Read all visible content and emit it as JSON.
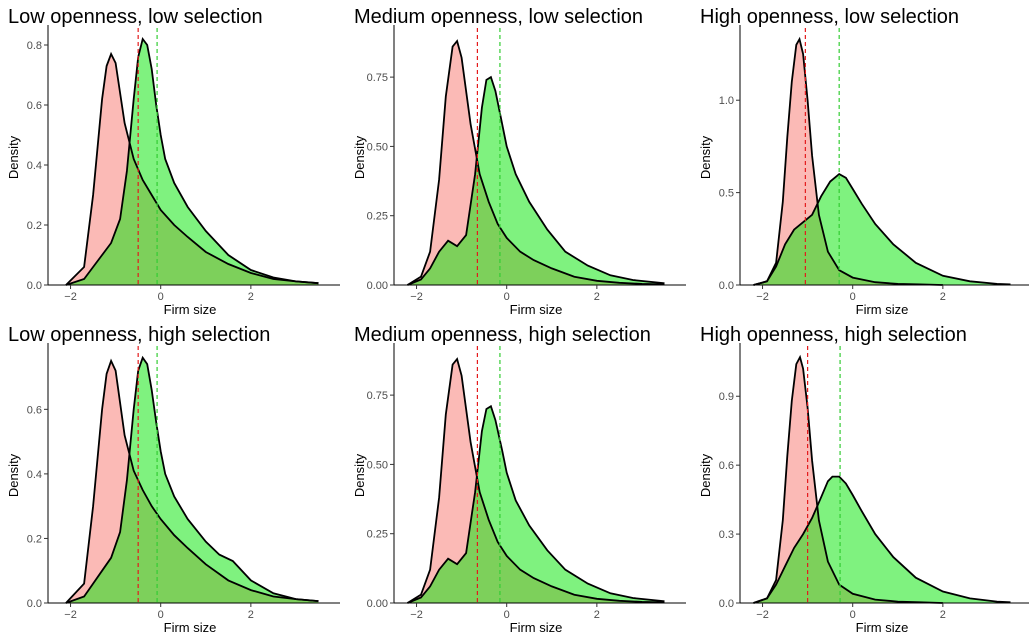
{
  "chart_data": [
    {
      "type": "area",
      "title": "Low openness, low selection",
      "xlabel": "Firm size",
      "ylabel": "Density",
      "xlim": [
        -2.5,
        3.8
      ],
      "ylim": [
        0,
        0.85
      ],
      "xticks": [
        -2,
        0,
        2
      ],
      "xtick_labels": [
        "−2",
        "0",
        "2"
      ],
      "yticks": [
        0,
        0.2,
        0.4,
        0.6,
        0.8
      ],
      "ytick_labels": [
        "0.0",
        "0.2",
        "0.4",
        "0.6",
        "0.8"
      ],
      "colors": {
        "red": "#f8766d",
        "green": "#00e600"
      },
      "vlines": {
        "red": -0.5,
        "green": -0.08
      },
      "series": [
        {
          "color": "red",
          "x": [
            -2.1,
            -1.7,
            -1.5,
            -1.3,
            -1.2,
            -1.1,
            -1.0,
            -0.9,
            -0.8,
            -0.6,
            -0.4,
            -0.2,
            0.0,
            0.3,
            0.6,
            1.0,
            1.5,
            2.0,
            2.5,
            3.0,
            3.5
          ],
          "y": [
            0.0,
            0.06,
            0.3,
            0.62,
            0.73,
            0.77,
            0.74,
            0.64,
            0.54,
            0.42,
            0.35,
            0.3,
            0.25,
            0.2,
            0.16,
            0.11,
            0.07,
            0.04,
            0.02,
            0.012,
            0.006
          ]
        },
        {
          "color": "green",
          "x": [
            -2.1,
            -1.7,
            -1.5,
            -1.3,
            -1.1,
            -0.9,
            -0.75,
            -0.6,
            -0.5,
            -0.4,
            -0.3,
            -0.2,
            -0.1,
            0.0,
            0.1,
            0.3,
            0.6,
            1.0,
            1.5,
            2.0,
            2.5,
            3.0,
            3.5
          ],
          "y": [
            0.0,
            0.02,
            0.06,
            0.1,
            0.14,
            0.22,
            0.38,
            0.62,
            0.76,
            0.82,
            0.8,
            0.72,
            0.6,
            0.5,
            0.42,
            0.34,
            0.26,
            0.18,
            0.1,
            0.05,
            0.025,
            0.012,
            0.006
          ]
        }
      ]
    },
    {
      "type": "area",
      "title": "Medium openness, low selection",
      "xlabel": "Firm size",
      "ylabel": "Density",
      "xlim": [
        -2.5,
        3.8
      ],
      "ylim": [
        0,
        0.92
      ],
      "xticks": [
        -2,
        0,
        2
      ],
      "xtick_labels": [
        "−2",
        "0",
        "2"
      ],
      "yticks": [
        0,
        0.25,
        0.5,
        0.75
      ],
      "ytick_labels": [
        "0.00",
        "0.25",
        "0.50",
        "0.75"
      ],
      "colors": {
        "red": "#f8766d",
        "green": "#00e600"
      },
      "vlines": {
        "red": -0.65,
        "green": -0.15
      },
      "series": [
        {
          "color": "red",
          "x": [
            -2.2,
            -1.9,
            -1.7,
            -1.5,
            -1.35,
            -1.2,
            -1.1,
            -1.0,
            -0.9,
            -0.8,
            -0.6,
            -0.4,
            -0.2,
            0.0,
            0.3,
            0.6,
            1.0,
            1.5,
            2.0,
            2.5,
            3.0,
            3.5
          ],
          "y": [
            0.0,
            0.03,
            0.12,
            0.38,
            0.68,
            0.86,
            0.88,
            0.82,
            0.7,
            0.58,
            0.4,
            0.3,
            0.22,
            0.17,
            0.12,
            0.09,
            0.06,
            0.03,
            0.015,
            0.008,
            0.004,
            0.002
          ]
        },
        {
          "color": "green",
          "x": [
            -2.2,
            -1.9,
            -1.7,
            -1.5,
            -1.3,
            -1.1,
            -0.9,
            -0.7,
            -0.55,
            -0.45,
            -0.35,
            -0.25,
            -0.1,
            0.0,
            0.2,
            0.5,
            0.9,
            1.3,
            1.8,
            2.3,
            2.8,
            3.5
          ],
          "y": [
            0.0,
            0.02,
            0.06,
            0.12,
            0.16,
            0.14,
            0.18,
            0.4,
            0.64,
            0.74,
            0.75,
            0.7,
            0.58,
            0.5,
            0.4,
            0.3,
            0.2,
            0.12,
            0.07,
            0.035,
            0.018,
            0.006
          ]
        }
      ]
    },
    {
      "type": "area",
      "title": "High openness, low selection",
      "xlabel": "Firm size",
      "ylabel": "Density",
      "xlim": [
        -2.5,
        3.8
      ],
      "ylim": [
        0,
        1.38
      ],
      "xticks": [
        -2,
        0,
        2
      ],
      "xtick_labels": [
        "−2",
        "0",
        "2"
      ],
      "yticks": [
        0,
        0.5,
        1.0
      ],
      "ytick_labels": [
        "0.0",
        "0.5",
        "1.0"
      ],
      "colors": {
        "red": "#f8766d",
        "green": "#00e600"
      },
      "vlines": {
        "red": -1.05,
        "green": -0.3
      },
      "series": [
        {
          "color": "red",
          "x": [
            -2.2,
            -1.9,
            -1.7,
            -1.55,
            -1.45,
            -1.35,
            -1.25,
            -1.18,
            -1.1,
            -1.0,
            -0.9,
            -0.75,
            -0.55,
            -0.3,
            0.0,
            0.5,
            1.0,
            1.5,
            2.0
          ],
          "y": [
            0.0,
            0.02,
            0.12,
            0.45,
            0.8,
            1.1,
            1.3,
            1.33,
            1.25,
            1.0,
            0.7,
            0.38,
            0.18,
            0.08,
            0.04,
            0.015,
            0.006,
            0.003,
            0.0
          ]
        },
        {
          "color": "green",
          "x": [
            -2.2,
            -1.9,
            -1.7,
            -1.5,
            -1.3,
            -1.1,
            -0.9,
            -0.7,
            -0.5,
            -0.3,
            -0.15,
            0.0,
            0.2,
            0.5,
            0.9,
            1.4,
            2.0,
            2.6,
            3.2,
            3.5
          ],
          "y": [
            0.0,
            0.02,
            0.1,
            0.22,
            0.3,
            0.34,
            0.38,
            0.48,
            0.56,
            0.6,
            0.58,
            0.52,
            0.44,
            0.33,
            0.22,
            0.12,
            0.05,
            0.02,
            0.006,
            0.003
          ]
        }
      ]
    },
    {
      "type": "area",
      "title": "Low openness, high selection",
      "xlabel": "Firm size",
      "ylabel": "Density",
      "xlim": [
        -2.5,
        3.8
      ],
      "ylim": [
        0,
        0.79
      ],
      "xticks": [
        -2,
        0,
        2
      ],
      "xtick_labels": [
        "−2",
        "0",
        "2"
      ],
      "yticks": [
        0,
        0.2,
        0.4,
        0.6
      ],
      "ytick_labels": [
        "0.0",
        "0.2",
        "0.4",
        "0.6"
      ],
      "colors": {
        "red": "#f8766d",
        "green": "#00e600"
      },
      "vlines": {
        "red": -0.5,
        "green": -0.08
      },
      "series": [
        {
          "color": "red",
          "x": [
            -2.1,
            -1.7,
            -1.5,
            -1.3,
            -1.2,
            -1.1,
            -1.0,
            -0.9,
            -0.8,
            -0.6,
            -0.4,
            -0.2,
            0.0,
            0.3,
            0.6,
            1.0,
            1.5,
            2.0,
            2.5,
            3.0,
            3.5
          ],
          "y": [
            0.0,
            0.06,
            0.3,
            0.6,
            0.71,
            0.75,
            0.72,
            0.62,
            0.52,
            0.41,
            0.35,
            0.3,
            0.26,
            0.21,
            0.17,
            0.12,
            0.07,
            0.04,
            0.02,
            0.012,
            0.006
          ]
        },
        {
          "color": "green",
          "x": [
            -2.1,
            -1.7,
            -1.5,
            -1.3,
            -1.1,
            -0.9,
            -0.75,
            -0.6,
            -0.5,
            -0.4,
            -0.3,
            -0.2,
            -0.1,
            0.0,
            0.1,
            0.3,
            0.6,
            1.0,
            1.3,
            1.6,
            2.0,
            2.5,
            3.0,
            3.5
          ],
          "y": [
            0.0,
            0.02,
            0.06,
            0.1,
            0.14,
            0.22,
            0.38,
            0.6,
            0.72,
            0.76,
            0.74,
            0.66,
            0.56,
            0.47,
            0.4,
            0.33,
            0.26,
            0.19,
            0.15,
            0.13,
            0.07,
            0.03,
            0.012,
            0.006
          ]
        }
      ]
    },
    {
      "type": "area",
      "title": "Medium openness, high selection",
      "xlabel": "Firm size",
      "ylabel": "Density",
      "xlim": [
        -2.5,
        3.8
      ],
      "ylim": [
        0,
        0.92
      ],
      "xticks": [
        -2,
        0,
        2
      ],
      "xtick_labels": [
        "−2",
        "0",
        "2"
      ],
      "yticks": [
        0,
        0.25,
        0.5,
        0.75
      ],
      "ytick_labels": [
        "0.00",
        "0.25",
        "0.50",
        "0.75"
      ],
      "colors": {
        "red": "#f8766d",
        "green": "#00e600"
      },
      "vlines": {
        "red": -0.65,
        "green": -0.15
      },
      "series": [
        {
          "color": "red",
          "x": [
            -2.2,
            -1.9,
            -1.7,
            -1.5,
            -1.35,
            -1.2,
            -1.1,
            -1.0,
            -0.9,
            -0.8,
            -0.6,
            -0.4,
            -0.2,
            0.0,
            0.3,
            0.6,
            1.0,
            1.5,
            2.0,
            2.5,
            3.0,
            3.5
          ],
          "y": [
            0.0,
            0.03,
            0.12,
            0.38,
            0.68,
            0.86,
            0.88,
            0.82,
            0.7,
            0.58,
            0.4,
            0.3,
            0.22,
            0.17,
            0.12,
            0.09,
            0.06,
            0.03,
            0.015,
            0.008,
            0.004,
            0.002
          ]
        },
        {
          "color": "green",
          "x": [
            -2.2,
            -1.9,
            -1.7,
            -1.5,
            -1.3,
            -1.1,
            -0.9,
            -0.7,
            -0.55,
            -0.45,
            -0.35,
            -0.25,
            -0.1,
            0.0,
            0.2,
            0.5,
            0.9,
            1.3,
            1.8,
            2.3,
            2.8,
            3.5
          ],
          "y": [
            0.0,
            0.02,
            0.06,
            0.12,
            0.16,
            0.14,
            0.18,
            0.4,
            0.62,
            0.7,
            0.71,
            0.66,
            0.55,
            0.47,
            0.37,
            0.28,
            0.19,
            0.12,
            0.07,
            0.035,
            0.018,
            0.006
          ]
        }
      ]
    },
    {
      "type": "area",
      "title": "High openness, high selection",
      "xlabel": "Firm size",
      "ylabel": "Density",
      "xlim": [
        -2.5,
        3.8
      ],
      "ylim": [
        0,
        1.11
      ],
      "xticks": [
        -2,
        0,
        2
      ],
      "xtick_labels": [
        "−2",
        "0",
        "2"
      ],
      "yticks": [
        0,
        0.3,
        0.6,
        0.9
      ],
      "ytick_labels": [
        "0.0",
        "0.3",
        "0.6",
        "0.9"
      ],
      "colors": {
        "red": "#f8766d",
        "green": "#00e600"
      },
      "vlines": {
        "red": -1.0,
        "green": -0.28
      },
      "series": [
        {
          "color": "red",
          "x": [
            -2.2,
            -1.9,
            -1.7,
            -1.55,
            -1.45,
            -1.35,
            -1.25,
            -1.17,
            -1.1,
            -1.0,
            -0.9,
            -0.75,
            -0.55,
            -0.3,
            0.0,
            0.5,
            1.0,
            1.5,
            2.0
          ],
          "y": [
            0.0,
            0.02,
            0.1,
            0.36,
            0.64,
            0.88,
            1.04,
            1.07,
            1.02,
            0.85,
            0.62,
            0.36,
            0.18,
            0.08,
            0.04,
            0.015,
            0.006,
            0.003,
            0.0
          ]
        },
        {
          "color": "green",
          "x": [
            -2.2,
            -1.9,
            -1.7,
            -1.5,
            -1.3,
            -1.1,
            -0.9,
            -0.7,
            -0.55,
            -0.45,
            -0.3,
            -0.15,
            0.0,
            0.2,
            0.5,
            0.9,
            1.4,
            2.0,
            2.6,
            3.2,
            3.5
          ],
          "y": [
            0.0,
            0.02,
            0.08,
            0.16,
            0.24,
            0.3,
            0.37,
            0.46,
            0.53,
            0.55,
            0.55,
            0.52,
            0.47,
            0.4,
            0.3,
            0.2,
            0.11,
            0.05,
            0.02,
            0.006,
            0.003
          ]
        }
      ]
    }
  ]
}
